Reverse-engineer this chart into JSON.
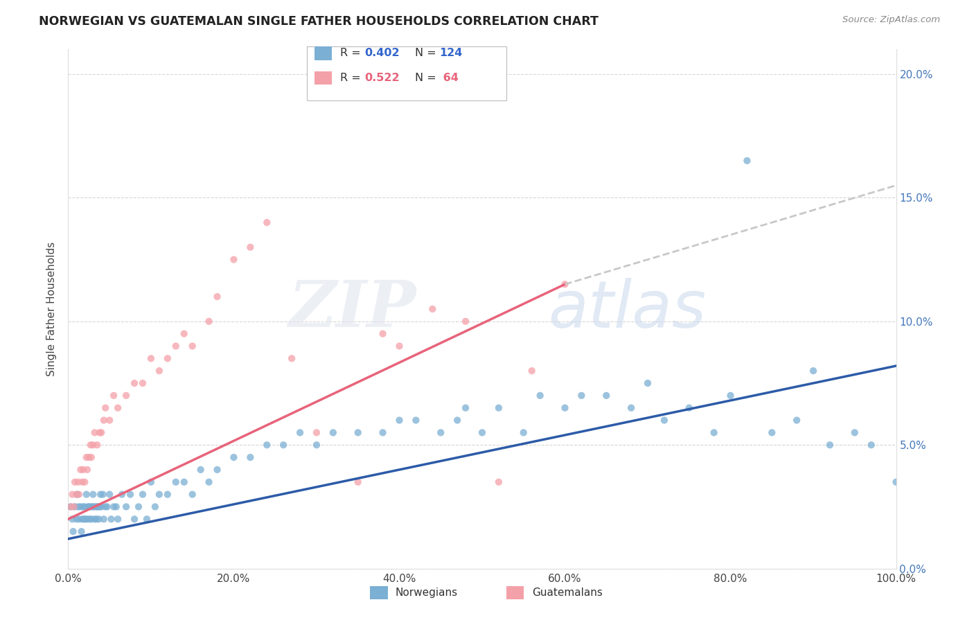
{
  "title": "NORWEGIAN VS GUATEMALAN SINGLE FATHER HOUSEHOLDS CORRELATION CHART",
  "source": "Source: ZipAtlas.com",
  "ylabel": "Single Father Households",
  "xlim": [
    0,
    100
  ],
  "ylim": [
    0,
    21
  ],
  "yticks": [
    0,
    5,
    10,
    15,
    20
  ],
  "ytick_labels": [
    "0.0%",
    "5.0%",
    "10.0%",
    "15.0%",
    "20.0%"
  ],
  "xticks": [
    0,
    20,
    40,
    60,
    80,
    100
  ],
  "xtick_labels": [
    "0.0%",
    "20.0%",
    "40.0%",
    "60.0%",
    "80.0%",
    "100.0%"
  ],
  "norwegian_color": "#7BAFD4",
  "guatemalan_color": "#F4A0A8",
  "norwegian_line_color": "#2C5BA8",
  "guatemalan_line_color": "#E8637A",
  "trend_extend_color": "#C8C8C8",
  "legend_r_nor": "0.402",
  "legend_n_nor": "124",
  "legend_r_guat": "0.522",
  "legend_n_guat": "64",
  "norwegian_scatter_x": [
    0.3,
    0.5,
    0.6,
    0.8,
    1.0,
    1.1,
    1.2,
    1.3,
    1.5,
    1.6,
    1.7,
    1.8,
    1.9,
    2.0,
    2.1,
    2.2,
    2.3,
    2.4,
    2.5,
    2.6,
    2.7,
    2.8,
    2.9,
    3.0,
    3.1,
    3.2,
    3.3,
    3.4,
    3.5,
    3.6,
    3.7,
    3.8,
    3.9,
    4.0,
    4.2,
    4.3,
    4.5,
    4.7,
    5.0,
    5.2,
    5.5,
    5.8,
    6.0,
    6.5,
    7.0,
    7.5,
    8.0,
    8.5,
    9.0,
    9.5,
    10.0,
    10.5,
    11.0,
    12.0,
    13.0,
    14.0,
    15.0,
    16.0,
    17.0,
    18.0,
    20.0,
    22.0,
    24.0,
    26.0,
    28.0,
    30.0,
    32.0,
    35.0,
    38.0,
    40.0,
    42.0,
    45.0,
    47.0,
    48.0,
    50.0,
    52.0,
    55.0,
    57.0,
    60.0,
    62.0,
    65.0,
    68.0,
    70.0,
    72.0,
    75.0,
    78.0,
    80.0,
    82.0,
    85.0,
    88.0,
    90.0,
    92.0,
    95.0,
    97.0,
    100.0
  ],
  "norwegian_scatter_y": [
    2.5,
    2.0,
    1.5,
    2.5,
    2.0,
    3.0,
    2.5,
    2.0,
    2.5,
    1.5,
    2.0,
    2.5,
    2.0,
    2.5,
    2.0,
    3.0,
    2.0,
    2.5,
    2.5,
    2.0,
    2.5,
    2.0,
    2.5,
    3.0,
    2.5,
    2.0,
    2.5,
    2.0,
    2.5,
    2.5,
    2.0,
    2.5,
    3.0,
    2.5,
    3.0,
    2.0,
    2.5,
    2.5,
    3.0,
    2.0,
    2.5,
    2.5,
    2.0,
    3.0,
    2.5,
    3.0,
    2.0,
    2.5,
    3.0,
    2.0,
    3.5,
    2.5,
    3.0,
    3.0,
    3.5,
    3.5,
    3.0,
    4.0,
    3.5,
    4.0,
    4.5,
    4.5,
    5.0,
    5.0,
    5.5,
    5.0,
    5.5,
    5.5,
    5.5,
    6.0,
    6.0,
    5.5,
    6.0,
    6.5,
    5.5,
    6.5,
    5.5,
    7.0,
    6.5,
    7.0,
    7.0,
    6.5,
    7.5,
    6.0,
    6.5,
    5.5,
    7.0,
    16.5,
    5.5,
    6.0,
    8.0,
    5.0,
    5.5,
    5.0,
    3.5
  ],
  "guatemalan_scatter_x": [
    0.3,
    0.5,
    0.7,
    0.8,
    1.0,
    1.2,
    1.3,
    1.5,
    1.7,
    1.8,
    2.0,
    2.2,
    2.3,
    2.5,
    2.7,
    2.8,
    3.0,
    3.2,
    3.5,
    3.8,
    4.0,
    4.3,
    4.5,
    5.0,
    5.5,
    6.0,
    7.0,
    8.0,
    9.0,
    10.0,
    11.0,
    12.0,
    13.0,
    14.0,
    15.0,
    17.0,
    18.0,
    20.0,
    22.0,
    24.0,
    27.0,
    30.0,
    35.0,
    38.0,
    40.0,
    44.0,
    48.0,
    52.0,
    56.0,
    60.0
  ],
  "guatemalan_scatter_y": [
    2.5,
    3.0,
    2.5,
    3.5,
    3.0,
    3.5,
    3.0,
    4.0,
    3.5,
    4.0,
    3.5,
    4.5,
    4.0,
    4.5,
    5.0,
    4.5,
    5.0,
    5.5,
    5.0,
    5.5,
    5.5,
    6.0,
    6.5,
    6.0,
    7.0,
    6.5,
    7.0,
    7.5,
    7.5,
    8.5,
    8.0,
    8.5,
    9.0,
    9.5,
    9.0,
    10.0,
    11.0,
    12.5,
    13.0,
    14.0,
    8.5,
    5.5,
    3.5,
    9.5,
    9.0,
    10.5,
    10.0,
    3.5,
    8.0,
    11.5
  ],
  "nor_trend_x0": 0,
  "nor_trend_x1": 100,
  "nor_trend_y0": 1.2,
  "nor_trend_y1": 8.2,
  "guat_trend_x0": 0,
  "guat_trend_x1": 60,
  "guat_trend_y0": 2.0,
  "guat_trend_y1": 11.5,
  "guat_extend_x0": 60,
  "guat_extend_x1": 100,
  "guat_extend_y0": 11.5,
  "guat_extend_y1": 15.5
}
